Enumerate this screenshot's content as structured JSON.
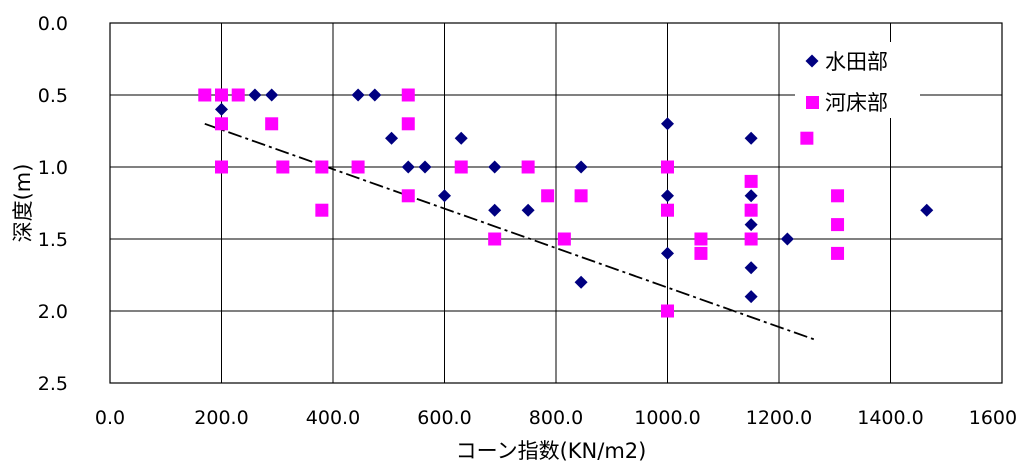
{
  "chart_data": {
    "type": "scatter",
    "xlabel": "コーン指数(KN/m2)",
    "ylabel": "深度(m)",
    "xlim": [
      0,
      1600
    ],
    "ylim": [
      0,
      2.5
    ],
    "y_inverted": true,
    "xticks": [
      0,
      200,
      400,
      600,
      800,
      1000,
      1200,
      1400,
      1600
    ],
    "yticks": [
      0,
      0.5,
      1.0,
      1.5,
      2.0,
      2.5
    ],
    "xtick_labels": [
      "0.0",
      "200.0",
      "400.0",
      "600.0",
      "800.0",
      "1000.0",
      "1200.0",
      "1400.0",
      "1600.0"
    ],
    "ytick_labels": [
      "0.0",
      "0.5",
      "1.0",
      "1.5",
      "2.0",
      "2.5"
    ],
    "grid": true,
    "legend_position": "top-right",
    "series": [
      {
        "name": "水田部",
        "marker": "diamond",
        "color": "#000080",
        "points": [
          [
            200,
            0.6
          ],
          [
            260,
            0.5
          ],
          [
            290,
            0.5
          ],
          [
            445,
            0.5
          ],
          [
            475,
            0.5
          ],
          [
            505,
            0.8
          ],
          [
            535,
            1.0
          ],
          [
            565,
            1.0
          ],
          [
            600,
            1.2
          ],
          [
            630,
            0.8
          ],
          [
            690,
            1.0
          ],
          [
            690,
            1.3
          ],
          [
            750,
            1.3
          ],
          [
            845,
            1.0
          ],
          [
            845,
            1.8
          ],
          [
            1000,
            0.7
          ],
          [
            1000,
            1.2
          ],
          [
            1000,
            1.6
          ],
          [
            1150,
            0.8
          ],
          [
            1150,
            1.2
          ],
          [
            1150,
            1.4
          ],
          [
            1150,
            1.7
          ],
          [
            1150,
            1.9
          ],
          [
            1215,
            1.5
          ],
          [
            1465,
            1.3
          ]
        ]
      },
      {
        "name": "河床部",
        "marker": "square",
        "color": "#FF00FF",
        "points": [
          [
            170,
            0.5
          ],
          [
            200,
            0.5
          ],
          [
            230,
            0.5
          ],
          [
            200,
            0.7
          ],
          [
            200,
            1.0
          ],
          [
            290,
            0.7
          ],
          [
            310,
            1.0
          ],
          [
            380,
            1.0
          ],
          [
            380,
            1.3
          ],
          [
            445,
            1.0
          ],
          [
            535,
            0.5
          ],
          [
            535,
            0.7
          ],
          [
            535,
            1.2
          ],
          [
            630,
            1.0
          ],
          [
            690,
            1.5
          ],
          [
            750,
            1.0
          ],
          [
            785,
            1.2
          ],
          [
            815,
            1.5
          ],
          [
            845,
            1.2
          ],
          [
            1000,
            1.0
          ],
          [
            1000,
            1.3
          ],
          [
            1000,
            2.0
          ],
          [
            1060,
            1.5
          ],
          [
            1060,
            1.6
          ],
          [
            1150,
            1.1
          ],
          [
            1150,
            1.3
          ],
          [
            1150,
            1.5
          ],
          [
            1250,
            0.8
          ],
          [
            1305,
            1.2
          ],
          [
            1305,
            1.4
          ],
          [
            1305,
            1.6
          ]
        ]
      }
    ],
    "trendline": {
      "style": "dash-dot",
      "color": "#000000",
      "points": [
        [
          170,
          0.7
        ],
        [
          1265,
          2.2
        ]
      ]
    }
  }
}
